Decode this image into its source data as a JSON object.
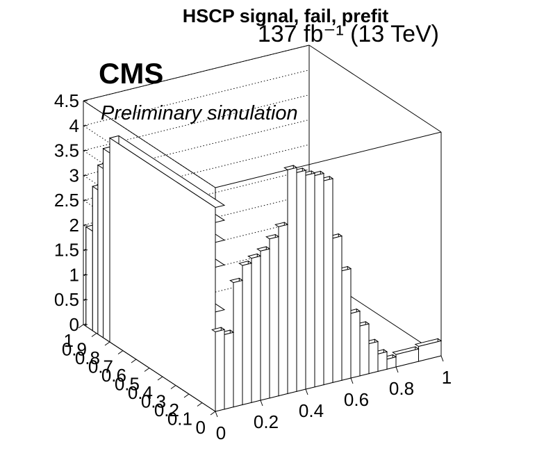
{
  "chart_data": {
    "type": "lego3d",
    "title": "HSCP signal, fail, prefit",
    "lumi_label": "137 fb⁻¹ (13 TeV)",
    "experiment_label": "CMS",
    "status_label": "Preliminary simulation",
    "xlim": [
      0,
      1
    ],
    "ylim": [
      0,
      1
    ],
    "zlim": [
      0,
      4.5
    ],
    "x_ticks": [
      "0",
      "0.2",
      "0.4",
      "0.6",
      "0.8",
      "1"
    ],
    "y_ticks": [
      "0",
      "0.1",
      "0.2",
      "0.3",
      "0.4",
      "0.5",
      "0.6",
      "0.7",
      "0.8",
      "0.9",
      "1"
    ],
    "z_ticks": [
      "0",
      "0.5",
      "1",
      "1.5",
      "2",
      "2.5",
      "3",
      "3.5",
      "4",
      "4.5"
    ],
    "x_bin_edges": [
      0,
      0.04,
      0.08,
      0.12,
      0.16,
      0.2,
      0.24,
      0.28,
      0.32,
      0.36,
      0.4,
      0.44,
      0.48,
      0.52,
      0.56,
      0.6,
      0.64,
      0.68,
      0.72,
      0.76,
      0.8,
      0.9,
      1.0
    ],
    "front_row_values": [
      1.6,
      1.5,
      2.5,
      2.8,
      2.9,
      3.0,
      3.2,
      3.4,
      4.5,
      4.4,
      4.3,
      4.25,
      4.1,
      2.9,
      2.2,
      1.3,
      1.0,
      0.6,
      0.35,
      0.2,
      0.25,
      0.3
    ],
    "left_edge_ribbons": [
      {
        "y": 0.98,
        "value": 2.0
      },
      {
        "y": 0.93,
        "value": 2.9
      },
      {
        "y": 0.89,
        "value": 3.4
      },
      {
        "y": 0.85,
        "value": 3.8
      },
      {
        "y": 0.8,
        "value": 4.1
      }
    ],
    "grid": true
  }
}
